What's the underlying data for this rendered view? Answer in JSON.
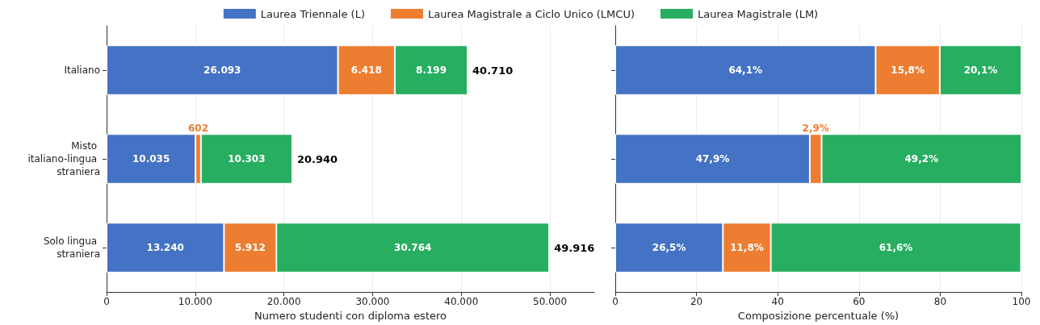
{
  "chart_data": [
    {
      "type": "bar",
      "orientation": "horizontal",
      "stacked": true,
      "categories": [
        "Italiano",
        "Misto italiano-lingua straniera",
        "Solo lingua straniera"
      ],
      "xlabel": "Numero studenti con diploma estero",
      "xlim": [
        0,
        55000
      ],
      "xticks": [
        {
          "value": 0,
          "label": "0"
        },
        {
          "value": 10000,
          "label": "10.000"
        },
        {
          "value": 20000,
          "label": "20.000"
        },
        {
          "value": 30000,
          "label": "30.000"
        },
        {
          "value": 40000,
          "label": "40.000"
        },
        {
          "value": 50000,
          "label": "50.000"
        }
      ],
      "grid": "x",
      "legend": "top",
      "series": [
        {
          "name": "Laurea Triennale (L)",
          "color": "#4472c4",
          "values": [
            26093,
            10035,
            13240
          ],
          "value_labels": [
            "26.093",
            "10.035",
            "13.240"
          ]
        },
        {
          "name": "Laurea Magistrale a Ciclo Unico (LMCU)",
          "color": "#ed7d31",
          "values": [
            6418,
            602,
            5912
          ],
          "value_labels": [
            "6.418",
            "602",
            "5.912"
          ]
        },
        {
          "name": "Laurea Magistrale (LM)",
          "color": "#27ae60",
          "values": [
            8199,
            10303,
            30764
          ],
          "value_labels": [
            "8.199",
            "10.303",
            "30.764"
          ]
        }
      ],
      "totals": [
        "40.710",
        "20.940",
        "49.916"
      ]
    },
    {
      "type": "bar",
      "orientation": "horizontal",
      "stacked": true,
      "categories": [
        "Italiano",
        "Misto italiano-lingua straniera",
        "Solo lingua straniera"
      ],
      "xlabel": "Composizione percentuale (%)",
      "xlim": [
        0,
        100
      ],
      "xticks": [
        0,
        20,
        40,
        60,
        80,
        100
      ],
      "grid": "x",
      "tick_labels": "x",
      "series": [
        {
          "color": "#4472c4",
          "values": [
            64.1,
            47.9,
            26.5
          ],
          "value_labels": [
            "64,1%",
            "47,9%",
            "26,5%"
          ]
        },
        {
          "color": "#ed7d31",
          "values": [
            15.8,
            2.9,
            11.8
          ],
          "value_labels": [
            "15,8%",
            "2,9%",
            "11,8%"
          ]
        },
        {
          "color": "#27ae60",
          "values": [
            20.1,
            49.2,
            61.6
          ],
          "value_labels": [
            "20,1%",
            "49,2%",
            "61,6%"
          ]
        }
      ]
    }
  ]
}
